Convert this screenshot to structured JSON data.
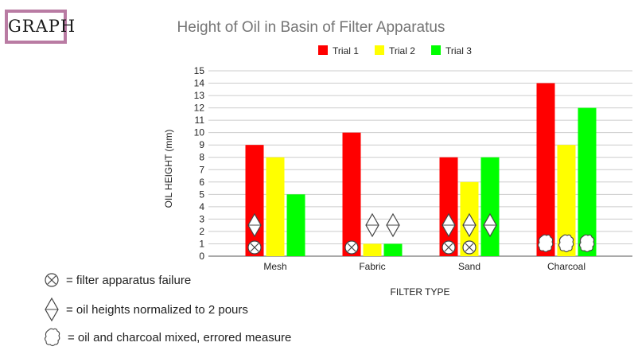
{
  "badge": {
    "label": "GRAPH"
  },
  "chart_data": {
    "type": "bar",
    "title": "Height of Oil in Basin of Filter Apparatus",
    "xlabel": "FILTER TYPE",
    "ylabel": "OIL HEIGHT (mm)",
    "categories": [
      "Mesh",
      "Fabric",
      "Sand",
      "Charcoal"
    ],
    "ylim": [
      0,
      15
    ],
    "yticks": [
      0,
      1,
      2,
      3,
      4,
      5,
      6,
      7,
      8,
      9,
      10,
      11,
      12,
      13,
      14,
      15
    ],
    "grid": true,
    "legend_position": "top",
    "series": [
      {
        "name": "Trial 1",
        "color": "#ff0000",
        "values": [
          9,
          10,
          8,
          14
        ]
      },
      {
        "name": "Trial 2",
        "color": "#ffff00",
        "values": [
          8,
          1,
          6,
          9
        ]
      },
      {
        "name": "Trial 3",
        "color": "#00ff00",
        "values": [
          5,
          1,
          8,
          12
        ]
      }
    ],
    "markers": [
      {
        "category": "Mesh",
        "series": "Trial 1",
        "symbols": [
          "failure-icon",
          "normalized-icon"
        ]
      },
      {
        "category": "Fabric",
        "series": "Trial 1",
        "symbols": [
          "failure-icon"
        ]
      },
      {
        "category": "Fabric",
        "series": "Trial 2",
        "symbols": [
          "normalized-icon"
        ]
      },
      {
        "category": "Fabric",
        "series": "Trial 3",
        "symbols": [
          "normalized-icon"
        ]
      },
      {
        "category": "Sand",
        "series": "Trial 1",
        "symbols": [
          "failure-icon",
          "normalized-icon"
        ]
      },
      {
        "category": "Sand",
        "series": "Trial 2",
        "symbols": [
          "failure-icon",
          "normalized-icon"
        ]
      },
      {
        "category": "Sand",
        "series": "Trial 3",
        "symbols": [
          "normalized-icon"
        ]
      },
      {
        "category": "Charcoal",
        "series": "Trial 1",
        "symbols": [
          "mixed-icon"
        ]
      },
      {
        "category": "Charcoal",
        "series": "Trial 2",
        "symbols": [
          "mixed-icon"
        ]
      },
      {
        "category": "Charcoal",
        "series": "Trial 3",
        "symbols": [
          "mixed-icon"
        ]
      }
    ]
  },
  "key": [
    {
      "icon": "failure-icon",
      "text": "= filter apparatus failure"
    },
    {
      "icon": "normalized-icon",
      "text": "= oil heights normalized to 2 pours"
    },
    {
      "icon": "mixed-icon",
      "text": "= oil and charcoal mixed, errored measure"
    }
  ]
}
